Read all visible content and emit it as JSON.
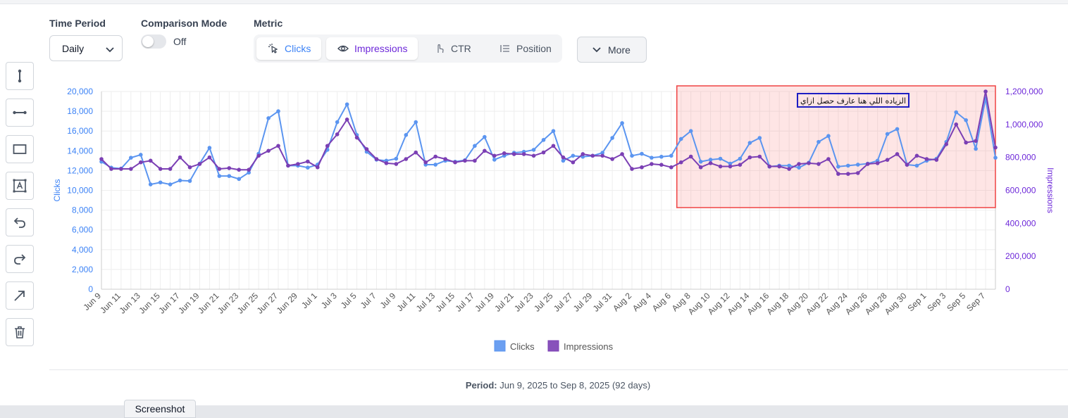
{
  "controls": {
    "time_period_label": "Time Period",
    "time_period_value": "Daily",
    "comparison_label": "Comparison Mode",
    "comparison_value": "Off",
    "metric_label": "Metric",
    "metrics": [
      {
        "label": "Clicks",
        "icon": "cursor-click-icon",
        "active": true,
        "color": "#3b82f6"
      },
      {
        "label": "Impressions",
        "icon": "eye-icon",
        "active": true,
        "color": "#6d28d9"
      },
      {
        "label": "CTR",
        "icon": "pointer-icon",
        "active": false,
        "color": "#4b5563"
      },
      {
        "label": "Position",
        "icon": "list-icon",
        "active": false,
        "color": "#4b5563"
      }
    ],
    "more_label": "More"
  },
  "tools": [
    "vertical-line-tool-icon",
    "horizontal-line-tool-icon",
    "rectangle-tool-icon",
    "text-box-tool-icon",
    "undo-icon",
    "redo-icon",
    "arrow-tool-icon",
    "delete-icon"
  ],
  "chart_data": {
    "type": "line",
    "y_left_label": "Clicks",
    "y_right_label": "Impressions",
    "y_left_range": [
      0,
      20000
    ],
    "y_right_range": [
      0,
      1200000
    ],
    "y_left_ticks": [
      "0",
      "2,000",
      "4,000",
      "6,000",
      "8,000",
      "10,000",
      "12,000",
      "14,000",
      "16,000",
      "18,000",
      "20,000"
    ],
    "y_right_ticks": [
      "0",
      "200,000",
      "400,000",
      "600,000",
      "800,000",
      "1,000,000",
      "1,200,000"
    ],
    "x": [
      "Jun 9",
      "Jun 10",
      "Jun 11",
      "Jun 12",
      "Jun 13",
      "Jun 14",
      "Jun 15",
      "Jun 16",
      "Jun 17",
      "Jun 18",
      "Jun 19",
      "Jun 20",
      "Jun 21",
      "Jun 22",
      "Jun 23",
      "Jun 24",
      "Jun 25",
      "Jun 26",
      "Jun 27",
      "Jun 28",
      "Jun 29",
      "Jun 30",
      "Jul 1",
      "Jul 2",
      "Jul 3",
      "Jul 4",
      "Jul 5",
      "Jul 6",
      "Jul 7",
      "Jul 8",
      "Jul 9",
      "Jul 10",
      "Jul 11",
      "Jul 12",
      "Jul 13",
      "Jul 14",
      "Jul 15",
      "Jul 16",
      "Jul 17",
      "Jul 18",
      "Jul 19",
      "Jul 20",
      "Jul 21",
      "Jul 22",
      "Jul 23",
      "Jul 24",
      "Jul 25",
      "Jul 26",
      "Jul 27",
      "Jul 28",
      "Jul 29",
      "Jul 30",
      "Jul 31",
      "Aug 1",
      "Aug 2",
      "Aug 3",
      "Aug 4",
      "Aug 5",
      "Aug 6",
      "Aug 7",
      "Aug 8",
      "Aug 9",
      "Aug 10",
      "Aug 11",
      "Aug 12",
      "Aug 13",
      "Aug 14",
      "Aug 15",
      "Aug 16",
      "Aug 17",
      "Aug 18",
      "Aug 19",
      "Aug 20",
      "Aug 21",
      "Aug 22",
      "Aug 23",
      "Aug 24",
      "Aug 25",
      "Aug 26",
      "Aug 27",
      "Aug 28",
      "Aug 29",
      "Aug 30",
      "Aug 31",
      "Sep 1",
      "Sep 2",
      "Sep 3",
      "Sep 4",
      "Sep 5",
      "Sep 6",
      "Sep 7",
      "Sep 8"
    ],
    "x_tick_labels": [
      "Jun 9",
      "Jun 11",
      "Jun 13",
      "Jun 15",
      "Jun 17",
      "Jun 19",
      "Jun 21",
      "Jun 23",
      "Jun 25",
      "Jun 27",
      "Jun 29",
      "Jul 1",
      "Jul 3",
      "Jul 5",
      "Jul 7",
      "Jul 9",
      "Jul 11",
      "Jul 13",
      "Jul 15",
      "Jul 17",
      "Jul 19",
      "Jul 21",
      "Jul 23",
      "Jul 25",
      "Jul 27",
      "Jul 29",
      "Jul 31",
      "Aug 2",
      "Aug 4",
      "Aug 6",
      "Aug 8",
      "Aug 10",
      "Aug 12",
      "Aug 14",
      "Aug 16",
      "Aug 18",
      "Aug 20",
      "Aug 22",
      "Aug 24",
      "Aug 26",
      "Aug 28",
      "Aug 30",
      "Sep 1",
      "Sep 3",
      "Sep 5",
      "Sep 7"
    ],
    "series": [
      {
        "name": "Clicks",
        "axis": "left",
        "color": "#5b95f0",
        "values": [
          12900,
          12300,
          12200,
          13300,
          13600,
          10600,
          10800,
          10600,
          11000,
          10950,
          12700,
          14300,
          11450,
          11450,
          11150,
          11800,
          13700,
          17300,
          18000,
          12500,
          12500,
          12300,
          12600,
          14100,
          16900,
          18700,
          15600,
          13900,
          13100,
          13000,
          13200,
          15600,
          16900,
          12600,
          12600,
          13000,
          12900,
          13050,
          14500,
          15400,
          13100,
          13500,
          13800,
          13900,
          14100,
          15100,
          16000,
          13000,
          13500,
          13400,
          13500,
          13800,
          15300,
          16800,
          13500,
          13700,
          13300,
          13400,
          13500,
          15200,
          16000,
          12900,
          13100,
          13200,
          12700,
          13200,
          14800,
          15300,
          12400,
          12500,
          12500,
          12300,
          12800,
          14900,
          15500,
          12400,
          12500,
          12600,
          12700,
          13000,
          15700,
          16200,
          12600,
          12500,
          13000,
          13200,
          14900,
          17900,
          17100,
          14200,
          19300,
          13300
        ]
      },
      {
        "name": "Impressions",
        "axis": "right",
        "color": "#7b3fb4",
        "values": [
          790000,
          730000,
          730000,
          730000,
          770000,
          780000,
          730000,
          730000,
          800000,
          740000,
          760000,
          800000,
          730000,
          735000,
          725000,
          725000,
          810000,
          840000,
          870000,
          750000,
          760000,
          775000,
          740000,
          870000,
          940000,
          1030000,
          920000,
          850000,
          790000,
          765000,
          760000,
          790000,
          830000,
          770000,
          805000,
          790000,
          770000,
          780000,
          780000,
          840000,
          810000,
          825000,
          820000,
          820000,
          810000,
          830000,
          870000,
          800000,
          770000,
          820000,
          810000,
          810000,
          790000,
          820000,
          730000,
          740000,
          760000,
          755000,
          740000,
          770000,
          805000,
          740000,
          765000,
          745000,
          745000,
          755000,
          800000,
          805000,
          745000,
          745000,
          730000,
          760000,
          765000,
          760000,
          790000,
          700000,
          700000,
          705000,
          760000,
          765000,
          785000,
          820000,
          755000,
          810000,
          790000,
          785000,
          880000,
          1000000,
          890000,
          900000,
          1200000,
          860000
        ]
      }
    ],
    "legend": [
      "Clicks",
      "Impressions"
    ],
    "legend_position": "bottom",
    "annotation_text": "الزياده اللي هنا عارف حصل ازاي",
    "highlight_range": [
      "Aug 7",
      "Sep 8"
    ],
    "grid": true
  },
  "footer": {
    "period_label": "Period:",
    "period_value": "Jun 9, 2025 to Sep 8, 2025 (92 days)"
  },
  "screenshot_tab": "Screenshot"
}
